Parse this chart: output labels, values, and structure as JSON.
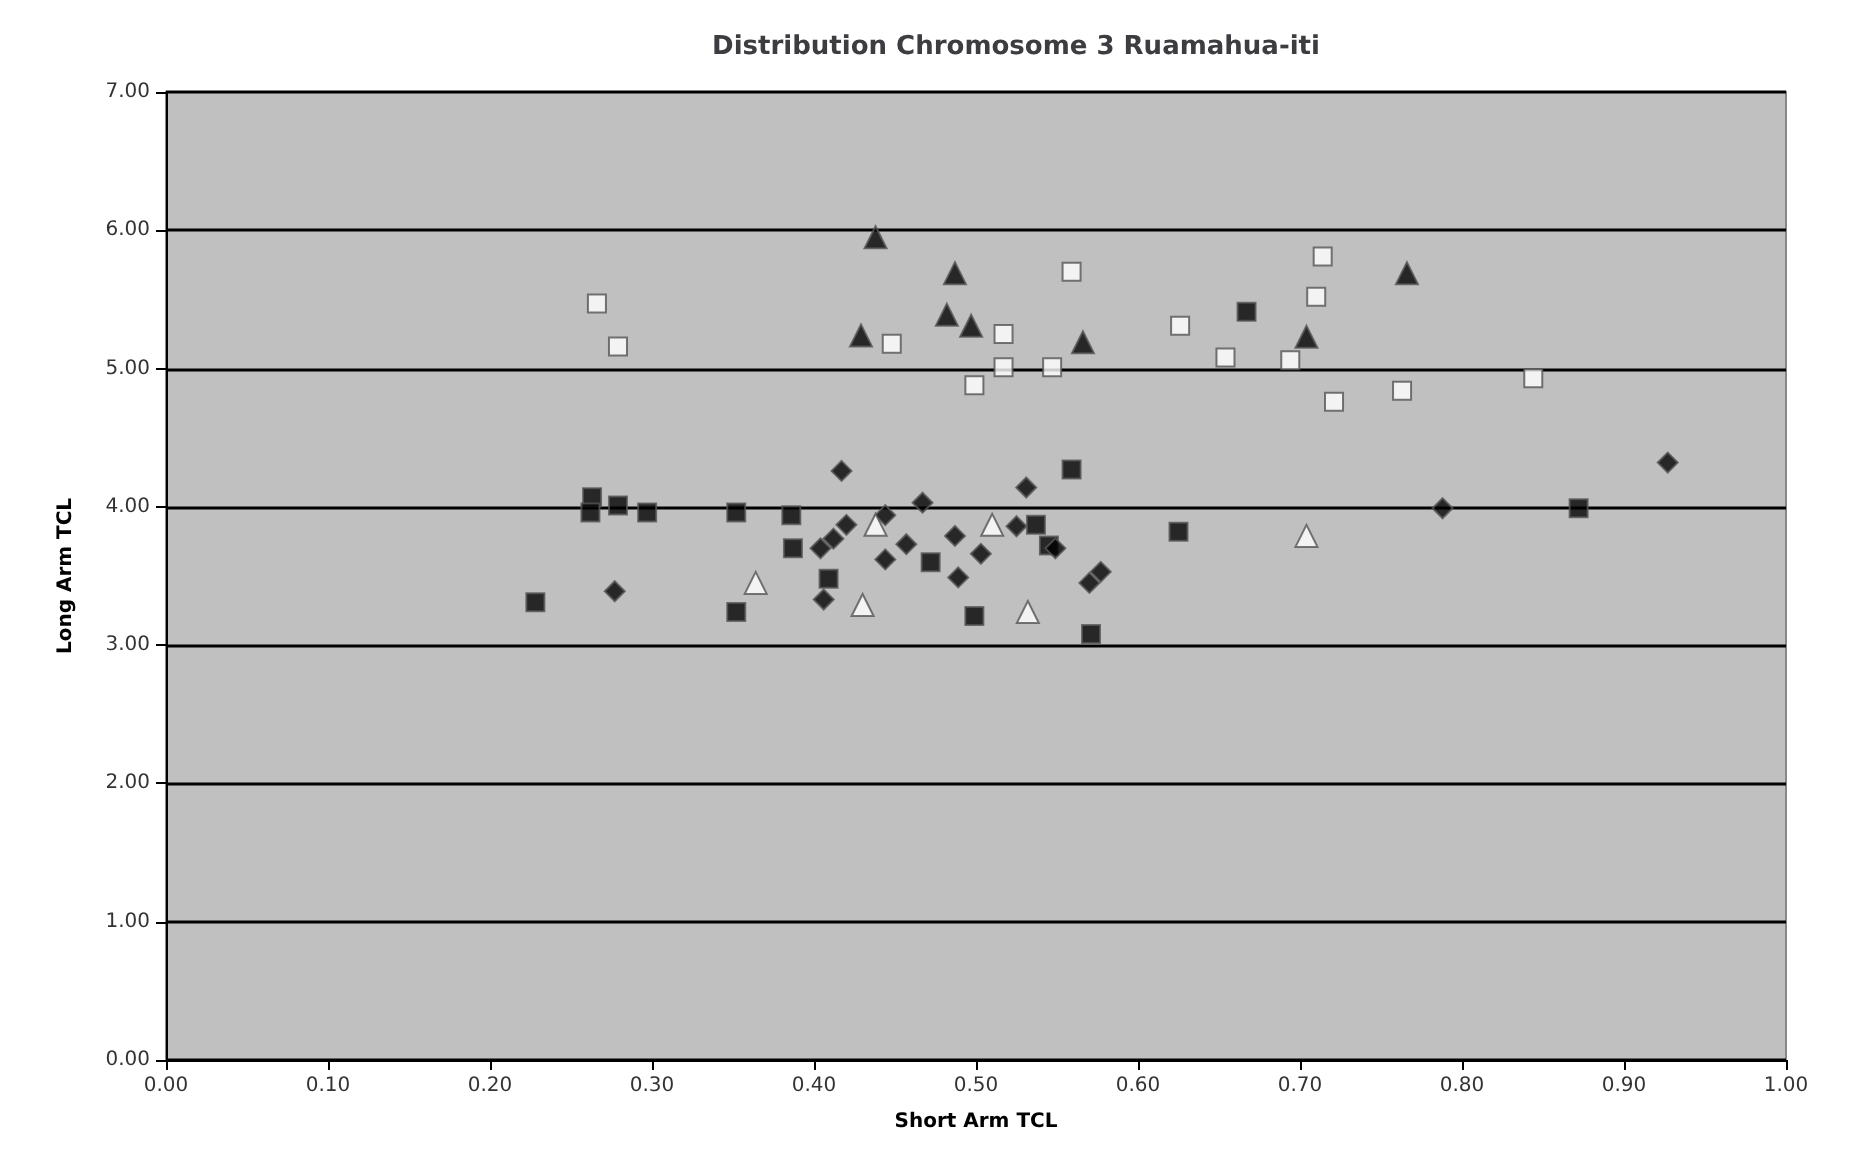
{
  "chart_data": {
    "type": "scatter",
    "title": "Distribution Chromosome 3 Ruamahua-iti",
    "xlabel": "Short Arm TCL",
    "ylabel": "Long Arm TCL",
    "xlim": [
      0,
      1
    ],
    "xticks": [
      {
        "value": 0,
        "label": "0.00"
      },
      {
        "value": 0.1,
        "label": "0.10"
      },
      {
        "value": 0.2,
        "label": "0.20"
      },
      {
        "value": 0.3,
        "label": "0.30"
      },
      {
        "value": 0.4,
        "label": "0.40"
      },
      {
        "value": 0.5,
        "label": "0.50"
      },
      {
        "value": 0.6,
        "label": "0.60"
      },
      {
        "value": 0.7,
        "label": "0.70"
      },
      {
        "value": 0.8,
        "label": "0.80"
      },
      {
        "value": 0.9,
        "label": "0.90"
      },
      {
        "value": 1,
        "label": "1.00"
      }
    ],
    "ylim": [
      0,
      7
    ],
    "yticks": [
      {
        "value": 0,
        "label": "0.00"
      },
      {
        "value": 1,
        "label": "1.00"
      },
      {
        "value": 2,
        "label": "2.00"
      },
      {
        "value": 3,
        "label": "3.00"
      },
      {
        "value": 4,
        "label": "4.00"
      },
      {
        "value": 5,
        "label": "5.00"
      },
      {
        "value": 6,
        "label": "6.00"
      },
      {
        "value": 7,
        "label": "7.00"
      }
    ],
    "grid": "y",
    "series": [
      {
        "marker": "square",
        "color": "#000000",
        "x": [
          0.228,
          0.263,
          0.262,
          0.279,
          0.297,
          0.352,
          0.352,
          0.386,
          0.387,
          0.409,
          0.472,
          0.667,
          0.559,
          0.625,
          0.499,
          0.571,
          0.537,
          0.545,
          0.872
        ],
        "values": [
          3.31,
          4.07,
          3.96,
          4.01,
          3.96,
          3.96,
          3.24,
          3.94,
          3.7,
          3.48,
          3.6,
          5.41,
          4.27,
          3.82,
          3.21,
          3.08,
          3.87,
          3.72,
          3.99
        ]
      },
      {
        "marker": "diamond",
        "color": "#000000",
        "x": [
          0.277,
          0.417,
          0.404,
          0.412,
          0.42,
          0.444,
          0.444,
          0.457,
          0.467,
          0.487,
          0.489,
          0.531,
          0.525,
          0.503,
          0.549,
          0.57,
          0.577,
          0.788,
          0.927,
          0.406
        ],
        "values": [
          3.39,
          4.26,
          3.7,
          3.77,
          3.87,
          3.94,
          3.62,
          3.73,
          4.03,
          3.79,
          3.49,
          4.14,
          3.86,
          3.66,
          3.7,
          3.45,
          3.53,
          3.99,
          4.32,
          3.33
        ]
      },
      {
        "marker": "triangle",
        "color": "#000000",
        "x": [
          0.438,
          0.487,
          0.482,
          0.429,
          0.497,
          0.566,
          0.704,
          0.766
        ],
        "values": [
          5.95,
          5.69,
          5.39,
          5.24,
          5.31,
          5.19,
          5.23,
          5.69
        ]
      },
      {
        "marker": "square",
        "color": "#ffffff",
        "x": [
          0.266,
          0.279,
          0.448,
          0.559,
          0.517,
          0.517,
          0.499,
          0.547,
          0.626,
          0.654,
          0.694,
          0.714,
          0.71,
          0.721,
          0.763,
          0.844
        ],
        "values": [
          5.47,
          5.16,
          5.18,
          5.7,
          5.25,
          5.01,
          4.88,
          5.01,
          5.31,
          5.08,
          5.06,
          5.81,
          5.52,
          4.76,
          4.84,
          4.93
        ]
      },
      {
        "marker": "triangle",
        "color": "#ffffff",
        "x": [
          0.364,
          0.43,
          0.438,
          0.51,
          0.532,
          0.704
        ],
        "values": [
          3.45,
          3.29,
          3.87,
          3.87,
          3.24,
          3.79
        ]
      }
    ]
  }
}
